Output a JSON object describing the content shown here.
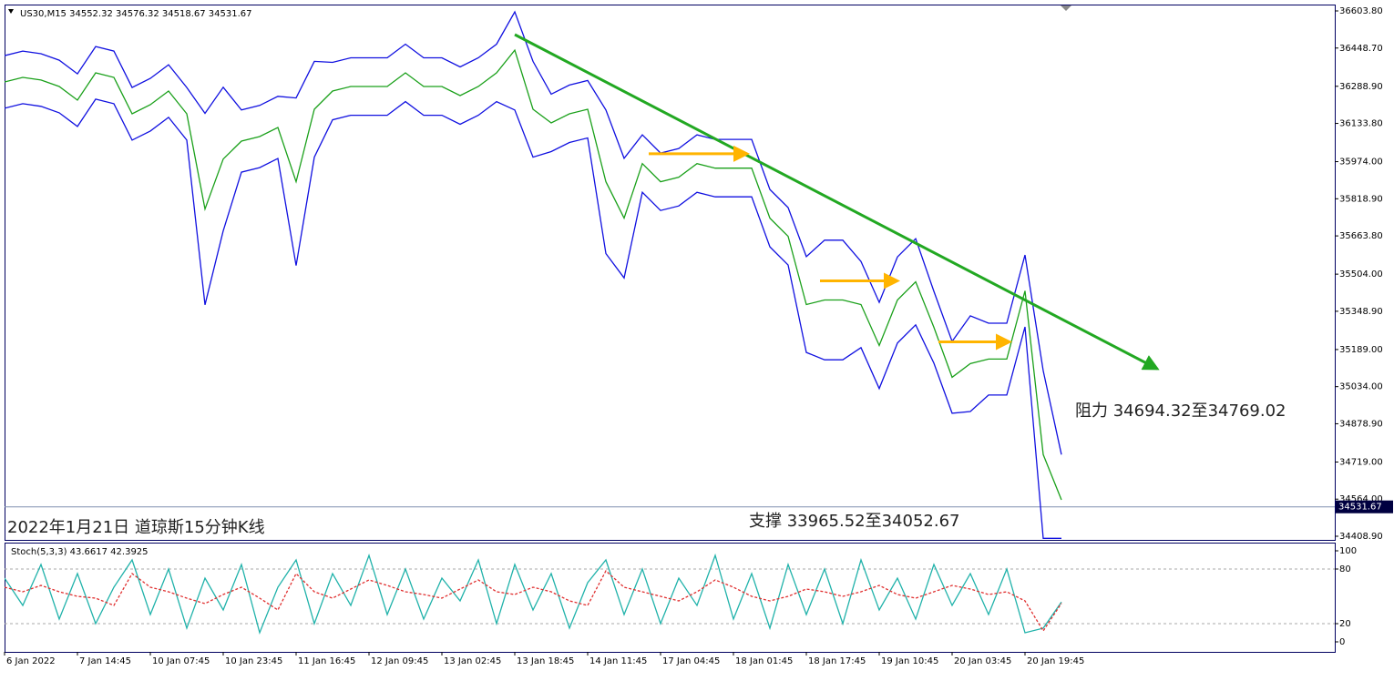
{
  "chart_data": [
    {
      "type": "line",
      "title": "US30,M15  34552.32 34576.32 34518.67 34531.67",
      "x": [
        0,
        1,
        2,
        3,
        4,
        5,
        6,
        7,
        8,
        9,
        10,
        11,
        12,
        13,
        14,
        15,
        16,
        17,
        18,
        19,
        20,
        21,
        22,
        23,
        24,
        25,
        26,
        27,
        28,
        29,
        30,
        31,
        32,
        33,
        34,
        35,
        36,
        37,
        38,
        39,
        40,
        41,
        42,
        43,
        44,
        45,
        46,
        47,
        48,
        49,
        50,
        51,
        52,
        53,
        54,
        55,
        56,
        57,
        58
      ],
      "xlim": [
        0,
        73
      ],
      "ylim": [
        34393.7,
        36630.4
      ],
      "yticks": [
        {
          "value": 36603.8,
          "label": "36603.80"
        },
        {
          "value": 36448.7,
          "label": "36448.70"
        },
        {
          "value": 36288.9,
          "label": "36288.90"
        },
        {
          "value": 36133.8,
          "label": "36133.80"
        },
        {
          "value": 35974,
          "label": "35974.00"
        },
        {
          "value": 35818.9,
          "label": "35818.90"
        },
        {
          "value": 35663.8,
          "label": "35663.80"
        },
        {
          "value": 35504,
          "label": "35504.00"
        },
        {
          "value": 35348.9,
          "label": "35348.90"
        },
        {
          "value": 35189,
          "label": "35189.00"
        },
        {
          "value": 35034,
          "label": "35034.00"
        },
        {
          "value": 34878.9,
          "label": "34878.90"
        },
        {
          "value": 34719,
          "label": "34719.00"
        },
        {
          "value": 34564,
          "label": "34564.00"
        },
        {
          "value": 34408.9,
          "label": "34408.90"
        }
      ],
      "series": [
        {
          "color": "#1aa01a",
          "values": [
            36307,
            36326,
            36315,
            36288,
            36231,
            36345,
            36326,
            36174,
            36212,
            36269,
            36174,
            35776,
            35985,
            36060,
            36079,
            36117,
            35890,
            36193,
            36269,
            36288,
            36288,
            36288,
            36345,
            36288,
            36288,
            36250,
            36288,
            36345,
            36440,
            36193,
            36136,
            36174,
            36193,
            35890,
            35738,
            35966,
            35890,
            35909,
            35966,
            35947,
            35947,
            35947,
            35738,
            35662,
            35377,
            35396,
            35396,
            35377,
            35206,
            35396,
            35472,
            35282,
            35073,
            35130,
            35149,
            35149,
            35434,
            34750,
            34561
          ]
        },
        {
          "color": "#1010e0",
          "values": [
            36417,
            36436,
            36425,
            36398,
            36341,
            36455,
            36436,
            36284,
            36322,
            36379,
            36284,
            36176,
            36285,
            36190,
            36209,
            36247,
            36240,
            36393,
            36389,
            36408,
            36408,
            36408,
            36465,
            36408,
            36408,
            36370,
            36408,
            36465,
            36600,
            36393,
            36256,
            36294,
            36313,
            36190,
            35988,
            36086,
            36010,
            36029,
            36086,
            36067,
            36067,
            36067,
            35858,
            35782,
            35577,
            35646,
            35646,
            35557,
            35386,
            35576,
            35652,
            35432,
            35223,
            35330,
            35299,
            35299,
            35584,
            35100,
            34750
          ]
        },
        {
          "color": "#1010e0",
          "values": [
            36197,
            36216,
            36205,
            36178,
            36121,
            36235,
            36216,
            36064,
            36102,
            36159,
            36064,
            35376,
            35685,
            35930,
            35949,
            35987,
            35540,
            35993,
            36149,
            36168,
            36168,
            36168,
            36225,
            36168,
            36168,
            36130,
            36168,
            36225,
            36190,
            35993,
            36016,
            36054,
            36073,
            35590,
            35488,
            35846,
            35770,
            35789,
            35846,
            35827,
            35827,
            35827,
            35618,
            35542,
            35177,
            35146,
            35146,
            35197,
            35026,
            35216,
            35292,
            35132,
            34923,
            34930,
            34999,
            34999,
            35284,
            34400,
            34400
          ]
        }
      ],
      "last_price": 34531.67,
      "trendline": {
        "color": "#22a822",
        "x": [
          28,
          63.25
        ],
        "y": [
          36504.9,
          35108.8
        ]
      },
      "arrows": [
        {
          "color": "#ffb400",
          "x": [
            35.35,
            40.75
          ],
          "y": [
            36007,
            36007
          ]
        },
        {
          "color": "#ffb400",
          "x": [
            44.75,
            49
          ],
          "y": [
            35476,
            35476
          ]
        },
        {
          "color": "#ffb400",
          "x": [
            51.25,
            55.15
          ],
          "y": [
            35221,
            35221
          ]
        }
      ],
      "annotations": [
        "2022年1月21日 道琼斯15分钟K线",
        "阻力 34694.32至34769.02",
        "支撑 33965.52至34052.67"
      ]
    },
    {
      "type": "line",
      "title": "Stoch(5,3,3) 43.6617 42.3925",
      "x": [
        0,
        1,
        2,
        3,
        4,
        5,
        6,
        7,
        8,
        9,
        10,
        11,
        12,
        13,
        14,
        15,
        16,
        17,
        18,
        19,
        20,
        21,
        22,
        23,
        24,
        25,
        26,
        27,
        28,
        29,
        30,
        31,
        32,
        33,
        34,
        35,
        36,
        37,
        38,
        39,
        40,
        41,
        42,
        43,
        44,
        45,
        46,
        47,
        48,
        49,
        50,
        51,
        52,
        53,
        54,
        55,
        56,
        57,
        58
      ],
      "xlim": [
        0,
        73
      ],
      "xticks": [
        {
          "value": 0,
          "label": "6 Jan 2022"
        },
        {
          "value": 4,
          "label": "7 Jan 14:45"
        },
        {
          "value": 8,
          "label": "10 Jan 07:45"
        },
        {
          "value": 12,
          "label": "10 Jan 23:45"
        },
        {
          "value": 16,
          "label": "11 Jan 16:45"
        },
        {
          "value": 20,
          "label": "12 Jan 09:45"
        },
        {
          "value": 24,
          "label": "13 Jan 02:45"
        },
        {
          "value": 28,
          "label": "13 Jan 18:45"
        },
        {
          "value": 32,
          "label": "14 Jan 11:45"
        },
        {
          "value": 36,
          "label": "17 Jan 04:45"
        },
        {
          "value": 40,
          "label": "18 Jan 01:45"
        },
        {
          "value": 44,
          "label": "18 Jan 17:45"
        },
        {
          "value": 48,
          "label": "19 Jan 10:45"
        },
        {
          "value": 52,
          "label": "20 Jan 03:45"
        },
        {
          "value": 56,
          "label": "20 Jan 19:45"
        }
      ],
      "ylim": [
        -11,
        109
      ],
      "yticks": [
        0,
        20,
        80,
        100
      ],
      "levels": [
        20,
        80
      ],
      "series": [
        {
          "color": "#20b2aa",
          "dashed": false,
          "values": [
            70,
            40,
            85,
            25,
            75,
            20,
            60,
            90,
            30,
            80,
            15,
            70,
            35,
            85,
            10,
            60,
            90,
            20,
            75,
            40,
            95,
            30,
            80,
            25,
            70,
            45,
            90,
            20,
            85,
            35,
            75,
            15,
            65,
            90,
            30,
            80,
            20,
            70,
            40,
            95,
            25,
            75,
            15,
            85,
            30,
            80,
            20,
            90,
            35,
            70,
            25,
            85,
            40,
            75,
            30,
            80,
            10,
            15,
            43.6617
          ]
        },
        {
          "color": "#e03030",
          "dashed": true,
          "values": [
            60,
            55,
            62,
            55,
            50,
            48,
            40,
            75,
            60,
            55,
            48,
            42,
            52,
            60,
            48,
            35,
            75,
            55,
            48,
            58,
            68,
            62,
            55,
            52,
            48,
            58,
            68,
            55,
            52,
            60,
            55,
            45,
            40,
            78,
            60,
            55,
            50,
            45,
            55,
            68,
            60,
            50,
            45,
            50,
            58,
            55,
            50,
            55,
            62,
            52,
            48,
            55,
            62,
            58,
            52,
            55,
            45,
            12,
            42.3925
          ]
        }
      ]
    }
  ]
}
